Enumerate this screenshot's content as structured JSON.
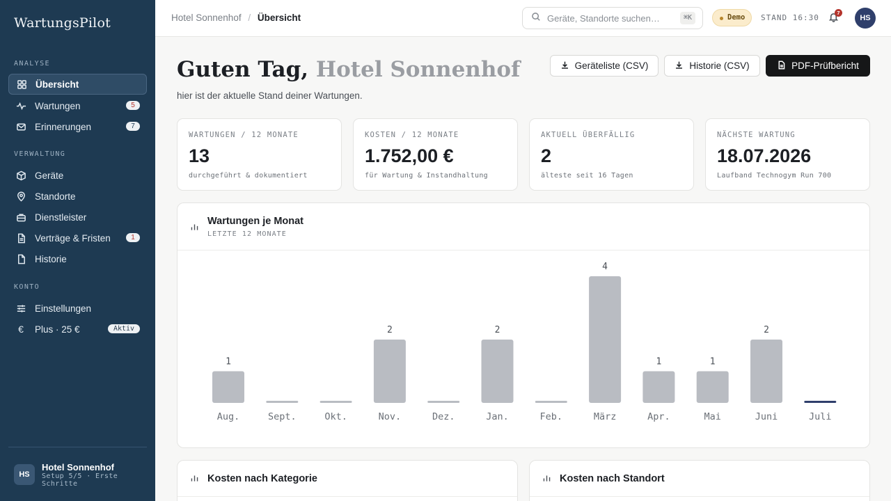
{
  "app": {
    "brand": "WartungsPilot"
  },
  "sidebar": {
    "sections": [
      {
        "label": "ANALYSE",
        "items": [
          {
            "label": "Übersicht",
            "icon": "grid-icon",
            "active": true
          },
          {
            "label": "Wartungen",
            "icon": "activity-icon",
            "badge": "5",
            "badge_style": "red"
          },
          {
            "label": "Erinnerungen",
            "icon": "mail-icon",
            "badge": "7"
          }
        ]
      },
      {
        "label": "VERWALTUNG",
        "items": [
          {
            "label": "Geräte",
            "icon": "box-icon"
          },
          {
            "label": "Standorte",
            "icon": "map-pin-icon"
          },
          {
            "label": "Dienstleister",
            "icon": "briefcase-icon"
          },
          {
            "label": "Verträge & Fristen",
            "icon": "file-icon",
            "badge": "1",
            "badge_style": "red"
          },
          {
            "label": "Historie",
            "icon": "document-icon"
          }
        ]
      },
      {
        "label": "KONTO",
        "items": [
          {
            "label": "Einstellungen",
            "icon": "sliders-icon"
          },
          {
            "label": "Plus · 25 €",
            "icon": "euro-icon",
            "badge": "Aktiv",
            "badge_style": "pill"
          }
        ]
      }
    ],
    "account": {
      "initials": "HS",
      "name": "Hotel Sonnenhof",
      "sub": "Setup 5/5 · Erste Schritte"
    }
  },
  "topbar": {
    "breadcrumb_root": "Hotel Sonnenhof",
    "breadcrumb_sep": "/",
    "breadcrumb_current": "Übersicht",
    "search_placeholder": "Geräte, Standorte suchen…",
    "search_shortcut": "⌘K",
    "demo_label": "Demo",
    "stand_label": "STAND 16:30",
    "notifications": "7",
    "avatar_initials": "HS"
  },
  "header": {
    "greeting": "Guten Tag,",
    "greeting_name": "Hotel Sonnenhof",
    "subtitle": "hier ist der aktuelle Stand deiner Wartungen.",
    "buttons": {
      "export_devices": "Geräteliste (CSV)",
      "export_history": "Historie (CSV)",
      "pdf_report": "PDF-Prüfbericht"
    }
  },
  "kpis": [
    {
      "label": "WARTUNGEN / 12 MONATE",
      "value": "13",
      "note": "durchgeführt & dokumentiert"
    },
    {
      "label": "KOSTEN / 12 MONATE",
      "value": "1.752,00 €",
      "note": "für Wartung & Instandhaltung"
    },
    {
      "label": "AKTUELL ÜBERFÄLLIG",
      "value": "2",
      "note": "älteste seit 16 Tagen"
    },
    {
      "label": "NÄCHSTE WARTUNG",
      "value": "18.07.2026",
      "note": "Laufband Technogym Run 700"
    }
  ],
  "monthly_chart": {
    "title": "Wartungen je Monat",
    "subtitle": "LETZTE 12 MONATE",
    "chart_data": {
      "type": "bar",
      "categories": [
        "Aug.",
        "Sept.",
        "Okt.",
        "Nov.",
        "Dez.",
        "Jan.",
        "Feb.",
        "März",
        "Apr.",
        "Mai",
        "Juni",
        "Juli"
      ],
      "values": [
        1,
        0,
        0,
        2,
        0,
        2,
        0,
        4,
        1,
        1,
        2,
        0
      ],
      "ylim": [
        0,
        4
      ],
      "bar_color": "#b9bcc2",
      "current_color": "#2f3f6b"
    }
  },
  "cost_category": {
    "title": "Kosten nach Kategorie"
  },
  "cost_location": {
    "title": "Kosten nach Standort"
  },
  "colors": {
    "sidebar_bg": "#1e3a52",
    "accent": "#2f3f6b",
    "alert": "#b4342c"
  }
}
